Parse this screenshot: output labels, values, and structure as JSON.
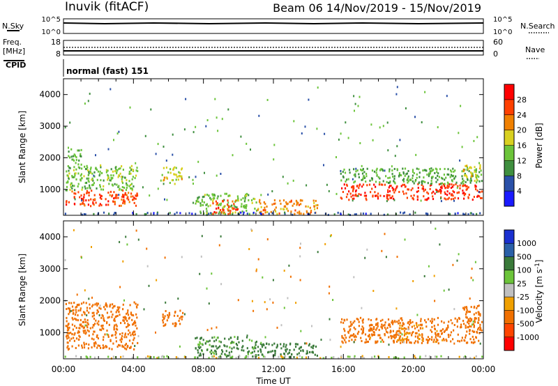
{
  "header": {
    "station": "Inuvik (fitACF)",
    "beam_date": "Beam 06   14/Nov/2019 - 15/Nov/2019"
  },
  "nsky_panel": {
    "left_label": "N.Sky",
    "left_top": "10^5",
    "left_bottom": "10^0",
    "right_top": "10^5",
    "right_bottom": "10^0",
    "right_label": "N.Search"
  },
  "freq_panel": {
    "left_label_1": "Freq.",
    "left_label_2": "[MHz]",
    "left_top": "18",
    "left_bottom": "8",
    "right_top": "60",
    "right_bottom": "0",
    "right_label": "Nave"
  },
  "cpid": {
    "label": "CPID",
    "mode": "normal (fast) 151"
  },
  "colors": {
    "power": [
      "#1a1aff",
      "#2a50a8",
      "#3f8f3f",
      "#6cc43a",
      "#d8d020",
      "#f08000",
      "#ff4000",
      "#ff0000"
    ],
    "velocity": [
      "#ff0000",
      "#ff4500",
      "#f07000",
      "#f0a000",
      "#c0c0c0",
      "#6cc43a",
      "#3a7a3a",
      "#2a60a8",
      "#1a30d0"
    ]
  },
  "chart_data": [
    {
      "type": "heatmap",
      "name": "power",
      "ylabel": "Slant Range [km]",
      "ylim": [
        180,
        4500
      ],
      "yticks": [
        "1000",
        "2000",
        "3000",
        "4000"
      ],
      "ytick_values": [
        1000,
        2000,
        3000,
        4000
      ],
      "xlim": [
        0,
        24
      ],
      "colorbar": {
        "label": "Power [dB]",
        "range": [
          0,
          32
        ],
        "ticks": [
          "4",
          "8",
          "12",
          "16",
          "20",
          "24",
          "28"
        ],
        "tick_values": [
          4,
          8,
          12,
          16,
          20,
          24,
          28
        ]
      },
      "regions": [
        {
          "t0": 0.1,
          "t1": 4.2,
          "r0": 500,
          "r1": 1000,
          "value": 26
        },
        {
          "t0": 0.1,
          "t1": 4.2,
          "r0": 1000,
          "r1": 1800,
          "value": 14
        },
        {
          "t0": 0.2,
          "t1": 1.0,
          "r0": 1700,
          "r1": 2300,
          "value": 12
        },
        {
          "t0": 5.6,
          "t1": 6.8,
          "r0": 1200,
          "r1": 1750,
          "value": 18
        },
        {
          "t0": 7.5,
          "t1": 11.0,
          "r0": 250,
          "r1": 900,
          "value": 14
        },
        {
          "t0": 8.5,
          "t1": 10.0,
          "r0": 250,
          "r1": 700,
          "value": 26
        },
        {
          "t0": 11.0,
          "t1": 14.5,
          "r0": 250,
          "r1": 700,
          "value": 22
        },
        {
          "t0": 15.8,
          "t1": 23.9,
          "r0": 700,
          "r1": 1200,
          "value": 27
        },
        {
          "t0": 15.8,
          "t1": 23.9,
          "r0": 1200,
          "r1": 1700,
          "value": 12
        },
        {
          "t0": 22.8,
          "t1": 23.9,
          "r0": 1300,
          "r1": 1800,
          "value": 18
        },
        {
          "t0": 0.0,
          "t1": 23.9,
          "r0": 180,
          "r1": 300,
          "value": 6
        }
      ]
    },
    {
      "type": "heatmap",
      "name": "velocity",
      "ylabel": "Slant Range [km]",
      "ylim": [
        180,
        4500
      ],
      "yticks": [
        "1000",
        "2000",
        "3000",
        "4000"
      ],
      "ytick_values": [
        1000,
        2000,
        3000,
        4000
      ],
      "xlabel": "Time UT",
      "xticks": [
        "00:00",
        "04:00",
        "08:00",
        "12:00",
        "16:00",
        "20:00",
        "00:00"
      ],
      "xtick_values": [
        0,
        4,
        8,
        12,
        16,
        20,
        24
      ],
      "xlim": [
        0,
        24
      ],
      "colorbar": {
        "label": "Velocity [m s^-1]",
        "levels": [
          "1000",
          "500",
          "100",
          "25",
          "-25",
          "-100",
          "-500",
          "-1000"
        ]
      },
      "regions": [
        {
          "t0": 0.1,
          "t1": 4.2,
          "r0": 500,
          "r1": 2000,
          "value": -300
        },
        {
          "t0": 5.6,
          "t1": 6.8,
          "r0": 1200,
          "r1": 1750,
          "value": -300
        },
        {
          "t0": 7.5,
          "t1": 11.0,
          "r0": 250,
          "r1": 900,
          "value": 150
        },
        {
          "t0": 11.0,
          "t1": 14.5,
          "r0": 250,
          "r1": 700,
          "value": 200
        },
        {
          "t0": 15.8,
          "t1": 23.9,
          "r0": 700,
          "r1": 1500,
          "value": -200
        },
        {
          "t0": 19.0,
          "t1": 20.5,
          "r0": 700,
          "r1": 1300,
          "value": -80
        },
        {
          "t0": 22.8,
          "t1": 23.9,
          "r0": 1200,
          "r1": 1900,
          "value": -300
        },
        {
          "t0": 0.0,
          "t1": 23.9,
          "r0": 180,
          "r1": 300,
          "value": 0
        }
      ]
    }
  ]
}
